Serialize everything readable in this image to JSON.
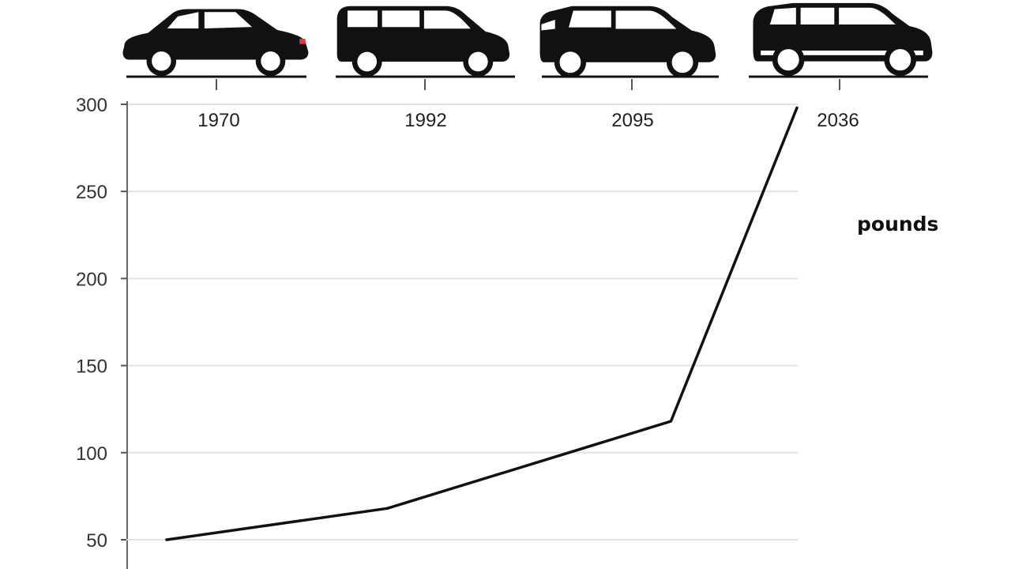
{
  "chart_data": {
    "type": "line",
    "x": [
      "1970",
      "1992",
      "2095",
      "2036"
    ],
    "series": [
      {
        "x": [
          0.0,
          1.05,
          2.4,
          3.0
        ],
        "values": [
          50,
          68,
          118,
          298
        ]
      }
    ],
    "intermediate_points_note": null,
    "y_ticks": [
      50,
      100,
      150,
      200,
      250,
      300
    ],
    "ylim": [
      50,
      300
    ],
    "unit_label": "pounds",
    "grid": true,
    "line_color": "#111111",
    "grid_color": "#e3e3e3",
    "car_icons": [
      "hatchback-icon",
      "minivan-icon",
      "compact-suv-icon",
      "suv-icon"
    ]
  }
}
